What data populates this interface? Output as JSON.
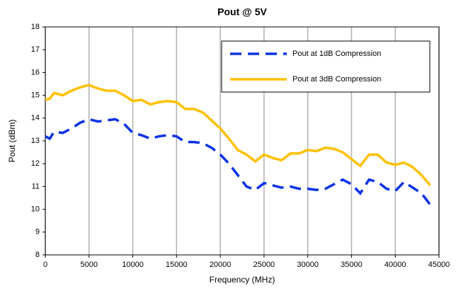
{
  "chart_data": {
    "type": "line",
    "title": "Pout @ 5V",
    "x_label": "Frequency (MHz)",
    "y_label": "Pout (dBm)",
    "x": [
      0,
      500,
      1000,
      2000,
      3000,
      4000,
      5000,
      6000,
      7000,
      8000,
      9000,
      10000,
      11000,
      12000,
      13000,
      14000,
      15000,
      16000,
      17000,
      18000,
      19000,
      20000,
      21000,
      22000,
      23000,
      24000,
      25000,
      26000,
      27000,
      28000,
      29000,
      30000,
      31000,
      32000,
      33000,
      34000,
      35000,
      36000,
      37000,
      38000,
      39000,
      40000,
      41000,
      42000,
      43000,
      44000
    ],
    "series": [
      {
        "name": "Pout at 1dB Compression",
        "color": "#0a32e6",
        "dash": true,
        "values": [
          13.2,
          13.1,
          13.4,
          13.35,
          13.55,
          13.8,
          13.95,
          13.85,
          13.9,
          13.95,
          13.75,
          13.35,
          13.25,
          13.1,
          13.2,
          13.25,
          13.2,
          12.95,
          12.95,
          12.9,
          12.7,
          12.4,
          12.0,
          11.5,
          11.0,
          10.85,
          11.15,
          11.05,
          10.95,
          11.0,
          10.9,
          10.9,
          10.85,
          10.9,
          11.1,
          11.3,
          11.1,
          10.7,
          11.3,
          11.2,
          10.9,
          10.8,
          11.2,
          10.95,
          10.7,
          10.2
        ]
      },
      {
        "name": "Pout at 3dB Compression",
        "color": "#ffc000",
        "dash": false,
        "values": [
          14.8,
          14.85,
          15.1,
          15.0,
          15.2,
          15.35,
          15.45,
          15.3,
          15.2,
          15.2,
          15.0,
          14.75,
          14.8,
          14.6,
          14.7,
          14.75,
          14.7,
          14.4,
          14.4,
          14.25,
          13.9,
          13.55,
          13.1,
          12.6,
          12.4,
          12.1,
          12.4,
          12.25,
          12.15,
          12.45,
          12.45,
          12.6,
          12.55,
          12.7,
          12.65,
          12.5,
          12.2,
          11.9,
          12.4,
          12.4,
          12.05,
          11.95,
          12.05,
          11.85,
          11.5,
          11.05
        ]
      }
    ],
    "xlim": [
      0,
      45000
    ],
    "xticks": [
      0,
      5000,
      10000,
      15000,
      20000,
      25000,
      30000,
      35000,
      40000,
      45000
    ],
    "ylim": [
      8,
      18
    ],
    "yticks": [
      8,
      9,
      10,
      11,
      12,
      13,
      14,
      15,
      16,
      17,
      18
    ],
    "grid": "x",
    "legend": "upper right"
  }
}
